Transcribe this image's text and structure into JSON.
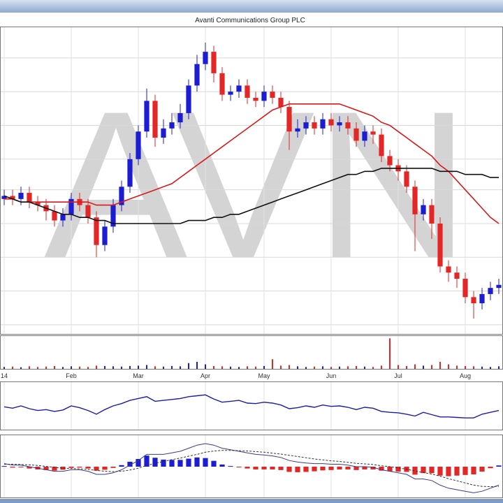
{
  "chart_data": {
    "type": "candlestick",
    "title": "Avanti Communications Group PLC",
    "watermark": "AVN",
    "categories": [
      "14",
      null,
      null,
      null,
      null,
      null,
      null,
      null,
      "Feb",
      null,
      null,
      null,
      null,
      null,
      null,
      null,
      "Mar",
      null,
      null,
      null,
      null,
      null,
      null,
      null,
      "Apr",
      null,
      null,
      null,
      null,
      null,
      null,
      "May",
      null,
      null,
      null,
      null,
      null,
      null,
      null,
      "Jun",
      null,
      null,
      null,
      null,
      null,
      null,
      null,
      "Jul",
      null,
      null,
      null,
      null,
      null,
      null,
      null,
      "Aug",
      null,
      null,
      null,
      null
    ],
    "open": [
      44,
      45,
      44,
      46,
      43,
      42,
      40,
      37,
      39,
      44,
      42,
      38,
      29,
      35,
      42,
      48,
      57,
      66,
      76,
      64,
      67,
      69,
      72,
      81,
      88,
      92,
      85,
      78,
      79,
      81,
      77,
      76,
      79,
      77,
      74,
      66,
      67,
      69,
      67,
      70,
      68,
      69,
      67,
      63,
      66,
      65,
      58,
      55,
      53,
      48,
      39,
      42,
      36,
      22,
      20,
      18,
      12,
      10,
      13,
      15
    ],
    "high": [
      47,
      47,
      48,
      48,
      45,
      44,
      42,
      41,
      46,
      46,
      44,
      40,
      37,
      44,
      50,
      59,
      68,
      80,
      78,
      70,
      72,
      75,
      83,
      91,
      95,
      94,
      87,
      81,
      83,
      83,
      79,
      81,
      81,
      79,
      76,
      70,
      71,
      71,
      72,
      72,
      71,
      71,
      69,
      68,
      68,
      67,
      60,
      57,
      55,
      50,
      44,
      44,
      38,
      24,
      22,
      20,
      14,
      15,
      17,
      18
    ],
    "low": [
      42,
      42,
      42,
      41,
      40,
      37,
      35,
      35,
      37,
      40,
      36,
      25,
      27,
      33,
      40,
      46,
      55,
      64,
      61,
      62,
      65,
      67,
      70,
      79,
      86,
      82,
      76,
      76,
      77,
      75,
      74,
      74,
      75,
      72,
      60,
      64,
      65,
      65,
      65,
      66,
      66,
      65,
      61,
      61,
      62,
      56,
      53,
      50,
      46,
      27,
      37,
      31,
      20,
      17,
      15,
      10,
      5,
      8,
      11,
      13
    ],
    "close": [
      45,
      44,
      46,
      43,
      42,
      40,
      37,
      39,
      44,
      42,
      38,
      29,
      35,
      42,
      48,
      57,
      66,
      76,
      64,
      67,
      69,
      72,
      81,
      88,
      92,
      85,
      78,
      79,
      81,
      77,
      76,
      79,
      77,
      74,
      66,
      67,
      69,
      67,
      70,
      68,
      69,
      67,
      63,
      66,
      65,
      58,
      55,
      53,
      48,
      39,
      42,
      36,
      22,
      20,
      18,
      12,
      10,
      13,
      15,
      16
    ],
    "up_color": "#1c1cd0",
    "down_color": "#e32626",
    "ylim": [
      0,
      100
    ],
    "grid_y": [
      3,
      14,
      25,
      36,
      47,
      57,
      68,
      79,
      90
    ],
    "overlays": [
      {
        "color": "#d81a1a",
        "values": [
          44,
          44,
          43,
          43,
          43,
          43,
          43,
          43,
          43,
          43,
          43,
          42,
          42,
          42,
          43,
          44,
          45,
          46,
          47,
          48,
          49,
          51,
          53,
          55,
          57,
          59,
          61,
          63,
          65,
          67,
          69,
          71,
          73,
          74,
          75,
          75,
          75,
          75,
          75,
          75,
          75,
          74,
          73,
          72,
          71,
          69,
          68,
          66,
          64,
          62,
          60,
          58,
          55,
          53,
          50,
          47,
          44,
          41,
          38,
          36
        ]
      },
      {
        "color": "#111111",
        "values": [
          45,
          44,
          43,
          43,
          42,
          41,
          40,
          39,
          39,
          38,
          38,
          37,
          37,
          36,
          36,
          36,
          36,
          36,
          36,
          36,
          36,
          36,
          37,
          37,
          37,
          38,
          38,
          39,
          39,
          40,
          41,
          42,
          43,
          44,
          45,
          46,
          47,
          48,
          49,
          50,
          51,
          52,
          52,
          53,
          53,
          54,
          54,
          54,
          54,
          54,
          54,
          54,
          53,
          53,
          53,
          52,
          52,
          52,
          51,
          51
        ]
      }
    ],
    "volume": {
      "ylim": [
        0,
        100
      ],
      "values": [
        6,
        7,
        5,
        8,
        6,
        7,
        9,
        6,
        8,
        7,
        6,
        10,
        9,
        8,
        7,
        9,
        10,
        12,
        8,
        7,
        9,
        8,
        18,
        22,
        14,
        9,
        8,
        7,
        6,
        8,
        7,
        9,
        30,
        10,
        12,
        8,
        6,
        7,
        8,
        6,
        7,
        8,
        9,
        7,
        6,
        10,
        95,
        12,
        9,
        14,
        10,
        12,
        22,
        14,
        10,
        9,
        8,
        7,
        6,
        8
      ]
    },
    "rsi": {
      "color": "#1c1ca8",
      "ylim": [
        0,
        100
      ],
      "values": [
        48,
        45,
        50,
        44,
        40,
        42,
        38,
        41,
        50,
        46,
        40,
        32,
        42,
        50,
        55,
        62,
        66,
        70,
        60,
        62,
        64,
        66,
        70,
        72,
        74,
        65,
        58,
        60,
        62,
        56,
        55,
        58,
        56,
        52,
        44,
        46,
        50,
        47,
        52,
        49,
        50,
        47,
        42,
        47,
        45,
        38,
        36,
        35,
        32,
        28,
        36,
        31,
        26,
        26,
        25,
        24,
        24,
        32,
        36,
        40
      ]
    },
    "macd": {
      "ylim": [
        -10,
        10
      ],
      "line_color": "#3a3a8c",
      "signal_color": "#333333",
      "macd": [
        1,
        0.5,
        0.5,
        0,
        -0.5,
        -1,
        -1.5,
        -1.5,
        -1,
        -1,
        -1.5,
        -2.5,
        -2.5,
        -2,
        -1,
        0.5,
        2,
        4,
        4,
        4,
        4.5,
        5,
        6,
        7,
        7.5,
        7,
        6,
        5.5,
        5,
        4.5,
        4,
        3.8,
        3.5,
        3,
        2,
        1.5,
        1.2,
        1,
        1,
        0.8,
        0.8,
        0.5,
        0,
        0,
        -0.2,
        -1,
        -1.5,
        -2,
        -2.5,
        -4,
        -4,
        -4.5,
        -6,
        -7,
        -7.5,
        -8,
        -8.5,
        -8,
        -7,
        -6
      ],
      "signal": [
        0.8,
        0.8,
        0.7,
        0.6,
        0.4,
        0.1,
        -0.2,
        -0.5,
        -0.6,
        -0.7,
        -0.9,
        -1.2,
        -1.5,
        -1.6,
        -1.5,
        -1.1,
        -0.5,
        0.4,
        1.1,
        1.7,
        2.3,
        2.8,
        3.4,
        4,
        4.7,
        5.1,
        5.3,
        5.3,
        5.2,
        5.1,
        4.9,
        4.7,
        4.4,
        4.1,
        3.7,
        3.3,
        2.9,
        2.5,
        2.2,
        1.9,
        1.7,
        1.4,
        1.1,
        0.9,
        0.7,
        0.3,
        0,
        -0.4,
        -0.8,
        -1.4,
        -1.9,
        -2.4,
        -3.1,
        -3.9,
        -4.6,
        -5.3,
        -6,
        -6.4,
        -6.5,
        -6.4
      ],
      "histogram": [
        0.2,
        -0.3,
        -0.2,
        -0.6,
        -0.9,
        -1.1,
        -1.3,
        -1,
        -0.4,
        -0.3,
        -0.6,
        -1.3,
        -1,
        -0.4,
        0.5,
        1.6,
        2.5,
        3.6,
        2.9,
        2.3,
        2.2,
        2.2,
        2.6,
        3,
        2.8,
        1.9,
        0.7,
        0.2,
        -0.2,
        -0.6,
        -0.9,
        -0.9,
        -0.9,
        -1.1,
        -1.7,
        -1.8,
        -1.7,
        -1.5,
        -1.2,
        -1.1,
        -0.9,
        -0.9,
        -1.1,
        -0.9,
        -0.9,
        -1.3,
        -1.5,
        -1.6,
        -1.7,
        -2.6,
        -2.1,
        -2.1,
        -2.9,
        -3.1,
        -2.9,
        -2.7,
        -2.5,
        -1.6,
        -0.5,
        0.4
      ]
    }
  }
}
